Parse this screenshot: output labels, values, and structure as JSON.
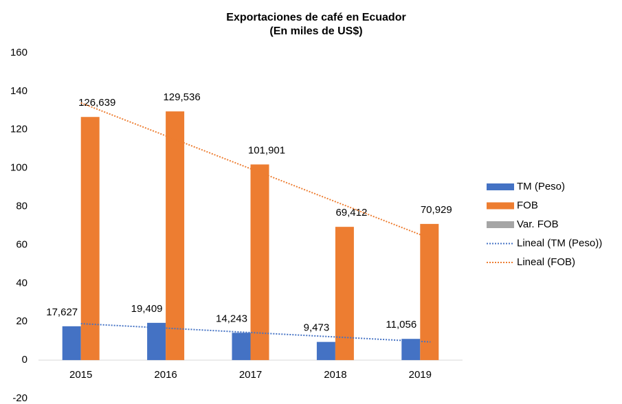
{
  "chart_data": {
    "type": "bar",
    "title": "Exportaciones de café en Ecuador",
    "subtitle": "(En miles de US$)",
    "categories": [
      "2015",
      "2016",
      "2017",
      "2018",
      "2019"
    ],
    "series": [
      {
        "name": "TM (Peso)",
        "color": "#4472c4",
        "values": [
          17.627,
          19.409,
          14.243,
          9.473,
          11.056
        ],
        "value_labels": [
          "17,627",
          "19,409",
          "14,243",
          "9,473",
          "11,056"
        ]
      },
      {
        "name": "FOB",
        "color": "#ed7d31",
        "values": [
          126.639,
          129.536,
          101.901,
          69.412,
          70.929
        ],
        "value_labels": [
          "126,639",
          "129,536",
          "101,901",
          "69,412",
          "70,929"
        ]
      },
      {
        "name": "Var. FOB",
        "color": "#a5a5a5",
        "values": [
          null,
          null,
          null,
          null,
          null
        ]
      }
    ],
    "trendlines": [
      {
        "name": "Lineal (TM (Peso))",
        "color": "#4472c4",
        "of": 0,
        "kind": "linear"
      },
      {
        "name": "Lineal (FOB)",
        "color": "#ed7d31",
        "of": 1,
        "kind": "linear"
      }
    ],
    "ylim": [
      -20,
      160
    ],
    "yticks": [
      -20,
      0,
      20,
      40,
      60,
      80,
      100,
      120,
      140,
      160
    ],
    "grid": false,
    "legend": "right"
  }
}
